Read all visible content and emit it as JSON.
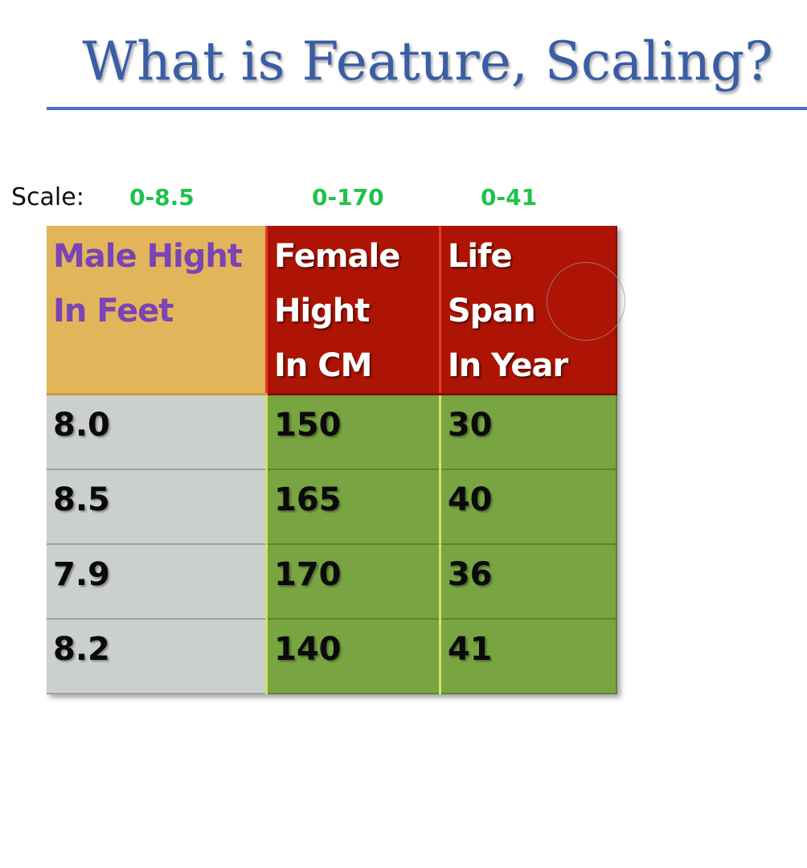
{
  "slide": {
    "title": "What is Feature, Scaling?"
  },
  "scale": {
    "label": "Scale:",
    "ranges": [
      "0-8.5",
      "0-170",
      "0-41"
    ]
  },
  "table": {
    "headers": [
      [
        "Male Hight",
        "In Feet"
      ],
      [
        "Female",
        "Hight",
        "In CM"
      ],
      [
        "Life Span",
        "In Year"
      ]
    ],
    "rows": [
      [
        "8.0",
        "150",
        "30"
      ],
      [
        "8.5",
        "165",
        "40"
      ],
      [
        "7.9",
        "170",
        "36"
      ],
      [
        "8.2",
        "140",
        "41"
      ]
    ]
  },
  "colors": {
    "title": "#3a5da4",
    "rule": "#4f73c2",
    "scale_range": "#1fc24a",
    "header_gold": "#e3b55a",
    "header_gold_text": "#7a44b5",
    "header_red": "#ae1404",
    "cell_gray": "#ccd0cc",
    "cell_green": "#78a542"
  }
}
